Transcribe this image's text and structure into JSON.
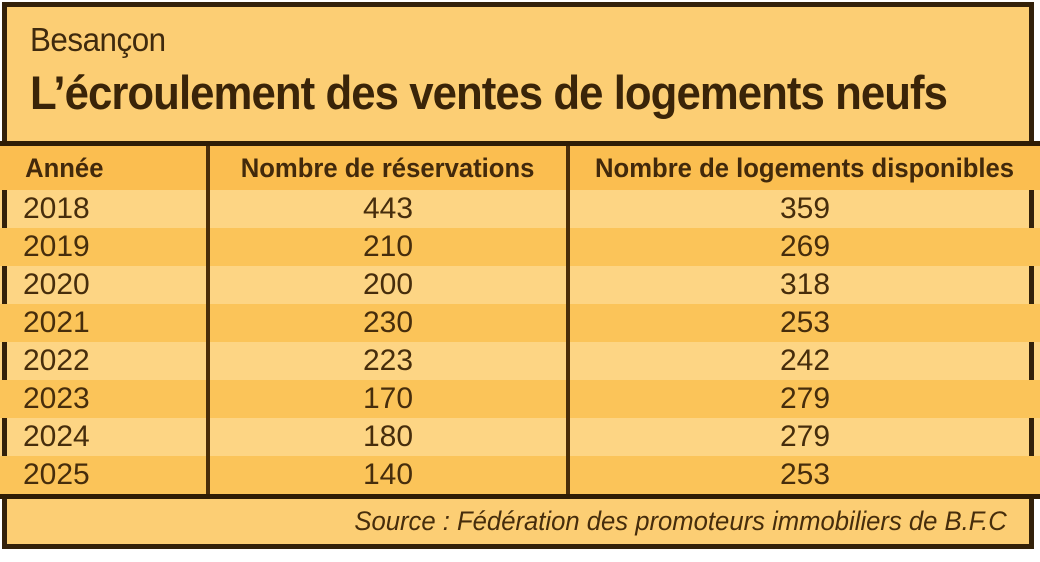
{
  "header": {
    "kicker": "Besançon",
    "title": "L’écroulement des ventes de logements neufs"
  },
  "table": {
    "columns": [
      "Année",
      "Nombre de réservations",
      "Nombre de logements disponibles"
    ],
    "rows": [
      [
        "2018",
        "443",
        "359"
      ],
      [
        "2019",
        "210",
        "269"
      ],
      [
        "2020",
        "200",
        "318"
      ],
      [
        "2021",
        "230",
        "253"
      ],
      [
        "2022",
        "223",
        "242"
      ],
      [
        "2023",
        "170",
        "279"
      ],
      [
        "2024",
        "180",
        "279"
      ],
      [
        "2025",
        "140",
        "253"
      ]
    ]
  },
  "source": {
    "label": "Source : Fédération des promoteurs immobiliers de B.F.C"
  },
  "colors": {
    "border_dark": "#33210A",
    "divider": "#4A2D08",
    "title_band_bg": "#FCCE74",
    "header_row_bg": "#FBBE50",
    "row_light_bg": "#FDD584",
    "row_dark_bg": "#FBC459",
    "text_dark_brown": "#3A2408"
  },
  "chart_data": {
    "type": "table",
    "title": "L’écroulement des ventes de logements neufs",
    "subtitle": "Besançon",
    "categories": [
      "2018",
      "2019",
      "2020",
      "2021",
      "2022",
      "2023",
      "2024",
      "2025"
    ],
    "series": [
      {
        "name": "Nombre de réservations",
        "values": [
          443,
          210,
          200,
          230,
          223,
          170,
          180,
          140
        ]
      },
      {
        "name": "Nombre de logements disponibles",
        "values": [
          359,
          269,
          318,
          253,
          242,
          279,
          279,
          253
        ]
      }
    ],
    "source": "Fédération des promoteurs immobiliers de B.F.C"
  }
}
